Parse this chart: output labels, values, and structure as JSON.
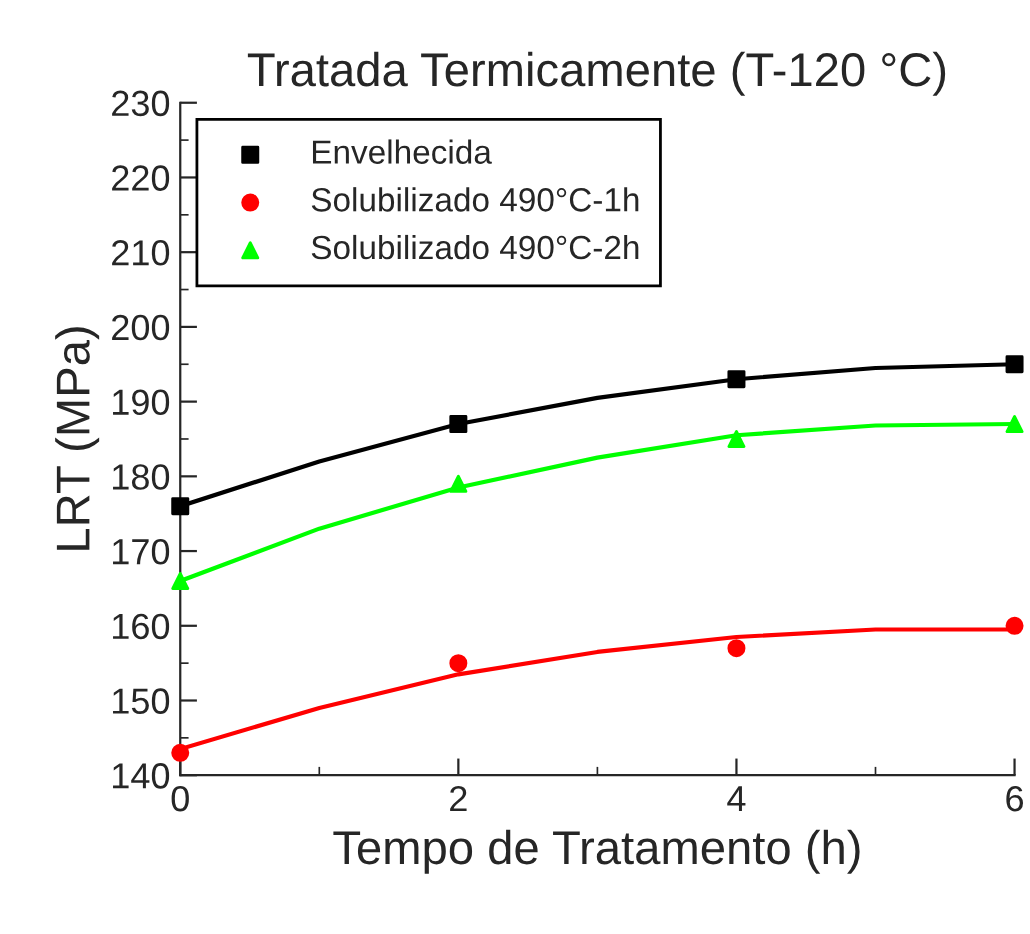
{
  "chart_data": {
    "type": "scatter",
    "title": "Tratada Termicamente (T-120 °C)",
    "xlabel": "Tempo de Tratamento (h)",
    "ylabel": "LRT (MPa)",
    "x": [
      0,
      2,
      4,
      6
    ],
    "series": [
      {
        "name": "Envelhecida",
        "color": "#000000",
        "marker": "square",
        "values": [
          176,
          187,
          193,
          195
        ]
      },
      {
        "name": "Solubilizado 490°C-1h",
        "color": "#ff0000",
        "marker": "circle",
        "values": [
          143,
          155,
          157,
          160
        ]
      },
      {
        "name": "Solubilizado 490°C-2h",
        "color": "#00ff00",
        "marker": "triangle",
        "values": [
          166,
          179,
          185,
          187
        ]
      },
      {
        "type": "line",
        "color": "#000000",
        "x": [
          0,
          1,
          2,
          3,
          4,
          5,
          6
        ],
        "values": [
          176,
          182,
          187,
          190.5,
          193,
          194.5,
          195
        ]
      },
      {
        "type": "line",
        "color": "#ff0000",
        "x": [
          0,
          1,
          2,
          3,
          4,
          5,
          6
        ],
        "values": [
          143.5,
          149,
          153.5,
          156.5,
          158.5,
          159.5,
          159.5
        ]
      },
      {
        "type": "line",
        "color": "#00ff00",
        "x": [
          0,
          1,
          2,
          3,
          4,
          5,
          6
        ],
        "values": [
          166,
          173,
          178.5,
          182.5,
          185.5,
          186.8,
          187
        ]
      }
    ],
    "xlim": [
      0,
      6
    ],
    "ylim": [
      140,
      230
    ],
    "xticks": [
      0,
      2,
      4,
      6
    ],
    "yticks": [
      140,
      150,
      160,
      170,
      180,
      190,
      200,
      210,
      220,
      230
    ],
    "legend": "top left",
    "grid": false
  }
}
